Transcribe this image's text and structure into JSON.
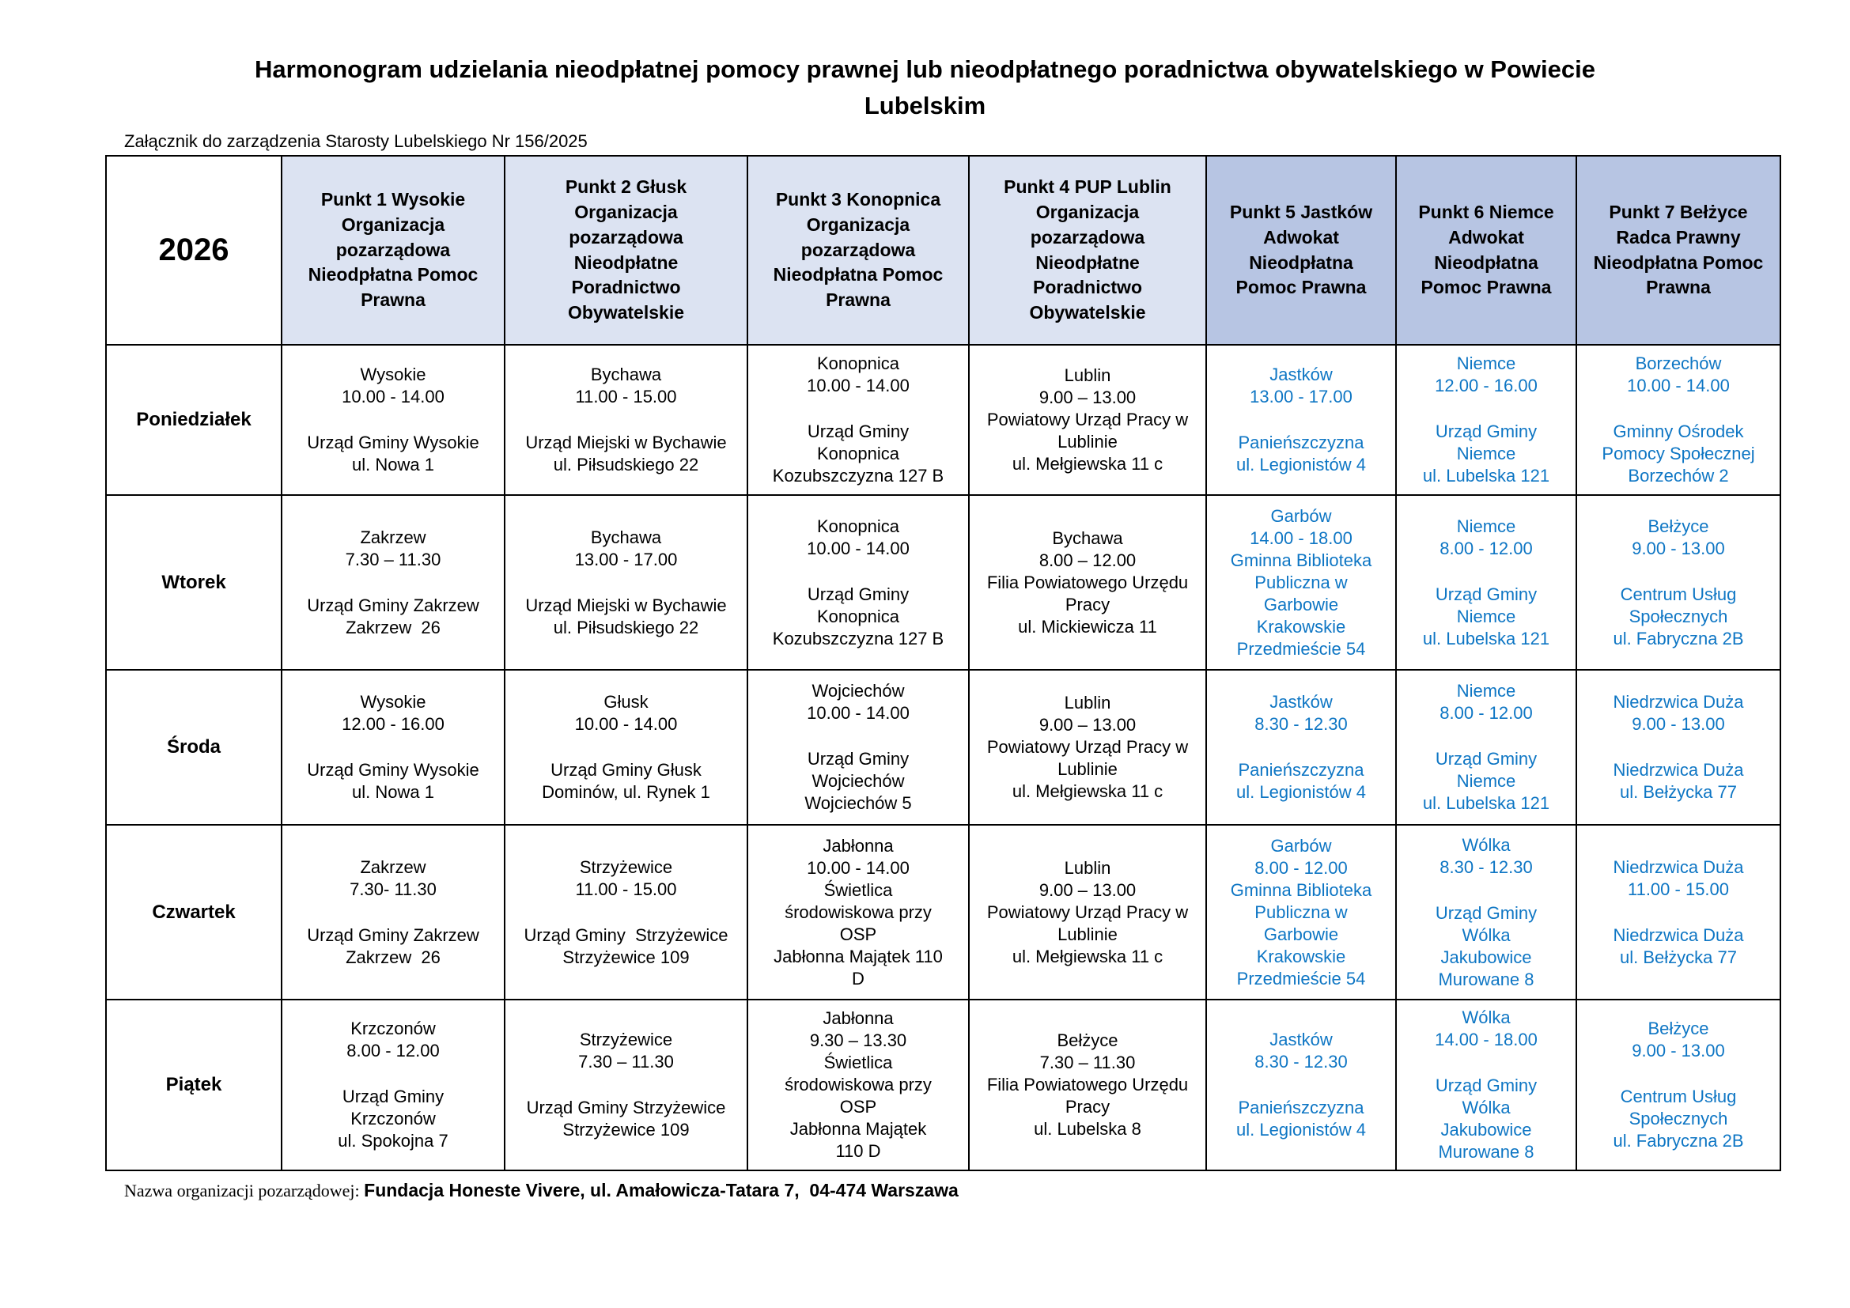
{
  "page": {
    "title": "Harmonogram udzielania nieodpłatnej pomocy prawnej lub nieodpłatnego poradnictwa obywatelskiego w Powiecie\nLubelskim",
    "attachment_note": "Załącznik do zarządzenia Starosty Lubelskiego Nr 156/2025",
    "footer": {
      "label": "Nazwa organizacji pozarządowej: ",
      "value": "Fundacja Honeste Vivere, ul. Amałowicza-Tatara 7,  04-474 Warszawa"
    }
  },
  "colors": {
    "header_light_blue": "#dce3f2",
    "header_dark_blue": "#b7c5e3",
    "blue_text": "#0e76c4",
    "black_text": "#000000"
  },
  "table": {
    "year": "2026",
    "columns": [
      {
        "label": "Punkt 1 Wysokie\nOrganizacja\npozarządowa\nNieodpłatna Pomoc\nPrawna",
        "shade": "light",
        "text_color": "black"
      },
      {
        "label": "Punkt 2 Głusk\nOrganizacja\npozarządowa\nNieodpłatne\nPoradnictwo\nObywatelskie",
        "shade": "light",
        "text_color": "black"
      },
      {
        "label": "Punkt 3 Konopnica\nOrganizacja\npozarządowa\nNieodpłatna Pomoc\nPrawna",
        "shade": "light",
        "text_color": "black"
      },
      {
        "label": "Punkt 4 PUP Lublin\nOrganizacja\npozarządowa\nNieodpłatne\nPoradnictwo\nObywatelskie",
        "shade": "light",
        "text_color": "black"
      },
      {
        "label": "Punkt 5 Jastków\nAdwokat\nNieodpłatna\nPomoc Prawna",
        "shade": "dark",
        "text_color": "blue"
      },
      {
        "label": "Punkt 6 Niemce\nAdwokat\nNieodpłatna\nPomoc Prawna",
        "shade": "dark",
        "text_color": "blue"
      },
      {
        "label": "Punkt 7 Bełżyce\nRadca Prawny\nNieodpłatna Pomoc\nPrawna",
        "shade": "dark",
        "text_color": "blue"
      }
    ],
    "rows": [
      {
        "day": "Poniedziałek",
        "cells": [
          {
            "lines": [
              "Wysokie",
              "10.00 - 14.00",
              "",
              "Urząd Gminy Wysokie",
              "ul. Nowa 1"
            ]
          },
          {
            "lines": [
              "Bychawa",
              "11.00 - 15.00",
              "",
              "Urząd Miejski w Bychawie",
              "ul. Piłsudskiego 22"
            ]
          },
          {
            "lines": [
              "Konopnica",
              "10.00 - 14.00",
              "",
              "Urząd Gminy",
              "Konopnica",
              "Kozubszczyzna 127 B"
            ]
          },
          {
            "lines": [
              "Lublin",
              "9.00 – 13.00",
              "Powiatowy Urząd Pracy w",
              "Lublinie",
              "ul. Mełgiewska 11 c"
            ]
          },
          {
            "lines": [
              "Jastków",
              "13.00 - 17.00",
              "",
              "Panieńszczyzna",
              "ul. Legionistów 4"
            ]
          },
          {
            "lines": [
              "Niemce",
              "12.00 - 16.00",
              "",
              "Urząd Gminy",
              "Niemce",
              "ul. Lubelska 121"
            ]
          },
          {
            "lines": [
              "Borzechów",
              "10.00 - 14.00",
              "",
              "Gminny Ośrodek",
              "Pomocy Społecznej",
              "Borzechów 2"
            ]
          }
        ]
      },
      {
        "day": "Wtorek",
        "cells": [
          {
            "lines": [
              "Zakrzew",
              "7.30 – 11.30",
              "",
              "Urząd Gminy Zakrzew",
              "Zakrzew  26"
            ]
          },
          {
            "lines": [
              "Bychawa",
              "13.00 - 17.00",
              "",
              "Urząd Miejski w Bychawie",
              "ul. Piłsudskiego 22"
            ]
          },
          {
            "lines": [
              "Konopnica",
              "10.00 - 14.00",
              "",
              "Urząd Gminy",
              "Konopnica",
              "Kozubszczyzna 127 B"
            ]
          },
          {
            "lines": [
              "Bychawa",
              "8.00 – 12.00",
              "Filia Powiatowego Urzędu",
              "Pracy",
              "ul. Mickiewicza 11"
            ]
          },
          {
            "lines": [
              "Garbów",
              "14.00 - 18.00",
              "Gminna Biblioteka",
              "Publiczna w",
              "Garbowie",
              "Krakowskie",
              "Przedmieście 54"
            ]
          },
          {
            "lines": [
              "Niemce",
              "8.00 - 12.00",
              "",
              "Urząd Gminy",
              "Niemce",
              "ul. Lubelska 121"
            ]
          },
          {
            "lines": [
              "Bełżyce",
              "9.00 - 13.00",
              "",
              "Centrum Usług",
              "Społecznych",
              "ul. Fabryczna 2B"
            ]
          }
        ]
      },
      {
        "day": "Środa",
        "cells": [
          {
            "lines": [
              "Wysokie",
              "12.00 - 16.00",
              "",
              "Urząd Gminy Wysokie",
              "ul. Nowa 1"
            ]
          },
          {
            "lines": [
              "Głusk",
              "10.00 - 14.00",
              "",
              "Urząd Gminy Głusk",
              "Dominów, ul. Rynek 1"
            ]
          },
          {
            "lines": [
              "Wojciechów",
              "10.00 - 14.00",
              "",
              "Urząd Gminy",
              "Wojciechów",
              "Wojciechów 5"
            ]
          },
          {
            "lines": [
              "Lublin",
              "9.00 – 13.00",
              "Powiatowy Urząd Pracy w",
              "Lublinie",
              "ul. Mełgiewska 11 c"
            ]
          },
          {
            "lines": [
              "Jastków",
              "8.30 - 12.30",
              "",
              "Panieńszczyzna",
              "ul. Legionistów 4"
            ]
          },
          {
            "lines": [
              "Niemce",
              "8.00 - 12.00",
              "",
              "Urząd Gminy",
              "Niemce",
              "ul. Lubelska 121"
            ]
          },
          {
            "lines": [
              "Niedrzwica Duża",
              "9.00 - 13.00",
              "",
              "Niedrzwica Duża",
              "ul. Bełżycka 77"
            ]
          }
        ]
      },
      {
        "day": "Czwartek",
        "cells": [
          {
            "lines": [
              "Zakrzew",
              "7.30- 11.30",
              "",
              "Urząd Gminy Zakrzew",
              "Zakrzew  26"
            ]
          },
          {
            "lines": [
              "Strzyżewice",
              "11.00 - 15.00",
              "",
              "Urząd Gminy  Strzyżewice",
              "Strzyżewice 109"
            ]
          },
          {
            "lines": [
              "Jabłonna",
              "10.00 - 14.00",
              "Świetlica",
              "środowiskowa przy",
              "OSP",
              "Jabłonna Majątek 110",
              "D"
            ]
          },
          {
            "lines": [
              "Lublin",
              "9.00 – 13.00",
              "Powiatowy Urząd Pracy w",
              "Lublinie",
              "ul. Mełgiewska 11 c"
            ]
          },
          {
            "lines": [
              "Garbów",
              "8.00 - 12.00",
              "Gminna Biblioteka",
              "Publiczna w",
              "Garbowie",
              "Krakowskie",
              "Przedmieście 54"
            ]
          },
          {
            "lines": [
              "Wólka",
              "8.30 - 12.30",
              "",
              "Urząd Gminy",
              "Wólka",
              "Jakubowice",
              "Murowane 8"
            ]
          },
          {
            "lines": [
              "Niedrzwica Duża",
              "11.00 - 15.00",
              "",
              "Niedrzwica Duża",
              "ul. Bełżycka 77"
            ]
          }
        ]
      },
      {
        "day": "Piątek",
        "cells": [
          {
            "lines": [
              "Krzczonów",
              "8.00 - 12.00",
              "",
              "Urząd Gminy",
              "Krzczonów",
              "ul. Spokojna 7"
            ]
          },
          {
            "lines": [
              "Strzyżewice",
              "7.30 – 11.30",
              "",
              "Urząd Gminy Strzyżewice",
              "Strzyżewice 109"
            ]
          },
          {
            "lines": [
              "Jabłonna",
              "9.30 – 13.30",
              "Świetlica",
              "środowiskowa przy",
              "OSP",
              "Jabłonna Majątek",
              "110 D"
            ]
          },
          {
            "lines": [
              "Bełżyce",
              "7.30 – 11.30",
              "Filia Powiatowego Urzędu",
              "Pracy",
              "ul. Lubelska 8"
            ]
          },
          {
            "lines": [
              "Jastków",
              "8.30 - 12.30",
              "",
              "Panieńszczyzna",
              "ul. Legionistów 4"
            ]
          },
          {
            "lines": [
              "Wólka",
              "14.00 - 18.00",
              "",
              "Urząd Gminy",
              "Wólka",
              "Jakubowice",
              "Murowane 8"
            ]
          },
          {
            "lines": [
              "Bełżyce",
              "9.00 - 13.00",
              "",
              "Centrum Usług",
              "Społecznych",
              "ul. Fabryczna 2B"
            ]
          }
        ]
      }
    ]
  }
}
